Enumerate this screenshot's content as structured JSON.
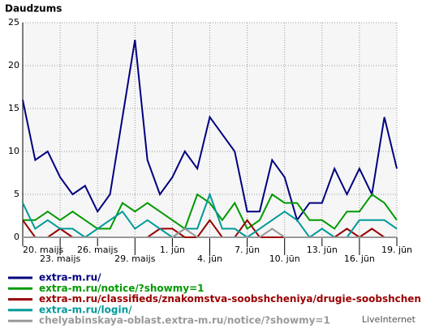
{
  "chart_data": {
    "type": "line",
    "title": "Daudzums",
    "categories": [
      "20. maijs",
      null,
      null,
      "23. maijs",
      null,
      null,
      "26. maijs",
      null,
      null,
      "29. maijs",
      null,
      null,
      "1. jūn",
      null,
      null,
      "4. jūn",
      null,
      null,
      "7. jūn",
      null,
      null,
      "10. jūn",
      null,
      null,
      "13. jūn",
      null,
      null,
      "16. jūn",
      null,
      null,
      "19. jūn"
    ],
    "series": [
      {
        "name": "extra-m.ru/",
        "color": "#000080",
        "values": [
          16,
          9,
          10,
          7,
          5,
          6,
          3,
          5,
          14,
          23,
          9,
          5,
          7,
          10,
          8,
          14,
          12,
          10,
          3,
          3,
          9,
          7,
          2,
          4,
          4,
          8,
          5,
          8,
          5,
          14,
          8
        ]
      },
      {
        "name": "extra-m.ru/notice/?showmy=1",
        "color": "#009900",
        "values": [
          2,
          2,
          3,
          2,
          3,
          2,
          1,
          1,
          4,
          3,
          4,
          3,
          2,
          1,
          5,
          4,
          2,
          4,
          1,
          2,
          5,
          4,
          4,
          2,
          2,
          1,
          3,
          3,
          5,
          4,
          2
        ]
      },
      {
        "name": "extra-m.ru/classifieds/znakomstva-soobshcheniya/drugie-soobshcheniya/",
        "color": "#990000",
        "values": [
          2,
          0,
          0,
          1,
          0,
          0,
          0,
          0,
          0,
          0,
          0,
          1,
          1,
          0,
          0,
          2,
          0,
          0,
          2,
          0,
          0,
          0,
          0,
          0,
          0,
          0,
          1,
          0,
          1,
          0,
          0
        ]
      },
      {
        "name": "extra-m.ru/login/",
        "color": "#009999",
        "values": [
          4,
          1,
          2,
          1,
          1,
          0,
          1,
          2,
          3,
          1,
          2,
          1,
          0,
          1,
          1,
          5,
          1,
          1,
          0,
          1,
          2,
          3,
          2,
          0,
          1,
          0,
          0,
          2,
          2,
          2,
          1
        ]
      },
      {
        "name": "chelyabinskaya-oblast.extra-m.ru/notice/?showmy=1",
        "color": "#999999",
        "values": [
          0,
          0,
          0,
          0,
          0,
          0,
          0,
          0,
          0,
          0,
          0,
          0,
          0,
          1,
          0,
          0,
          0,
          0,
          0,
          0,
          1,
          0,
          0,
          0,
          0,
          0,
          0,
          0,
          0,
          0,
          0
        ]
      }
    ],
    "ylim": [
      0,
      25
    ],
    "yticks": [
      0,
      5,
      10,
      15,
      20,
      25
    ],
    "grid": true,
    "footer": "LiveInternet"
  }
}
